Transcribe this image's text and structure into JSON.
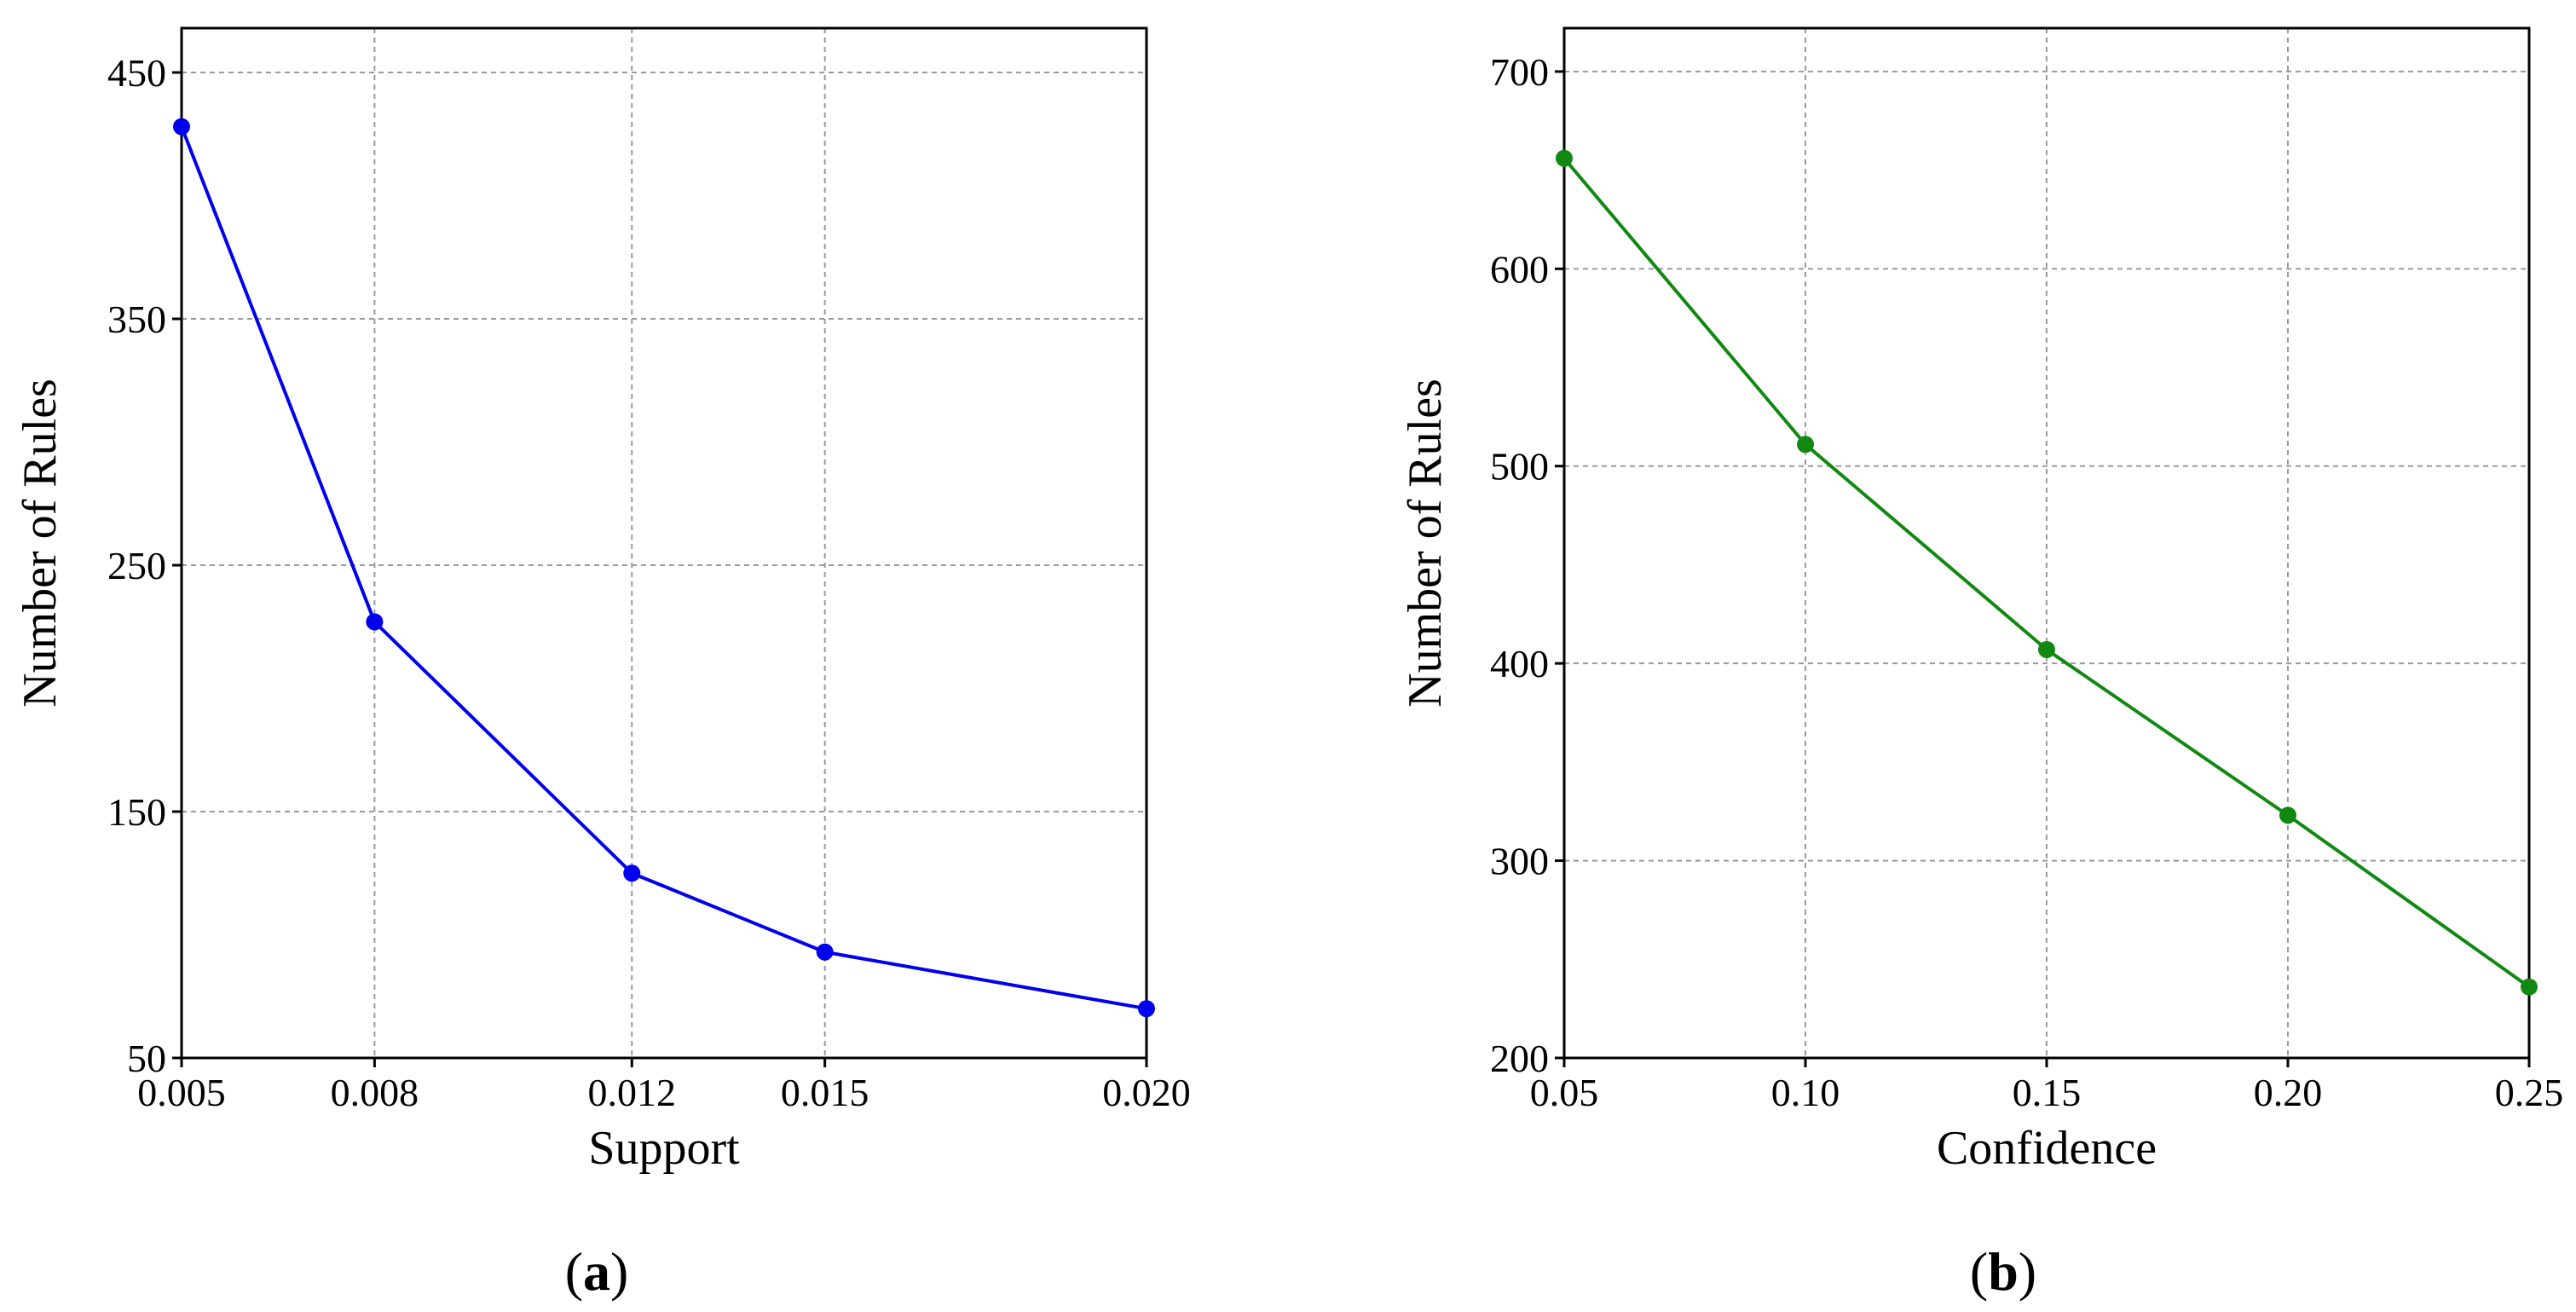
{
  "chart_data": [
    {
      "type": "line",
      "panel": "a",
      "caption_open": "(",
      "caption_letter": "a",
      "caption_close": ")",
      "title": "",
      "xlabel": "Support",
      "ylabel": "Number of Rules",
      "x": [
        0.005,
        0.008,
        0.012,
        0.015,
        0.02
      ],
      "x_tick_labels": [
        "0.005",
        "0.008",
        "0.012",
        "0.015",
        "0.020"
      ],
      "y_ticks": [
        50,
        150,
        250,
        350,
        450
      ],
      "y_tick_labels": [
        "50",
        "150",
        "250",
        "350",
        "450"
      ],
      "xlim": [
        0.005,
        0.02
      ],
      "ylim": [
        50,
        468
      ],
      "grid": true,
      "series": [
        {
          "values": [
            428,
            227,
            125,
            93,
            70
          ],
          "color": "#0000ee"
        }
      ]
    },
    {
      "type": "line",
      "panel": "b",
      "caption_open": "(",
      "caption_letter": "b",
      "caption_close": ")",
      "title": "",
      "xlabel": "Confidence",
      "ylabel": "Number of Rules",
      "x": [
        0.05,
        0.1,
        0.15,
        0.2,
        0.25
      ],
      "x_tick_labels": [
        "0.05",
        "0.10",
        "0.15",
        "0.20",
        "0.25"
      ],
      "y_ticks": [
        200,
        300,
        400,
        500,
        600,
        700
      ],
      "y_tick_labels": [
        "200",
        "300",
        "400",
        "500",
        "600",
        "700"
      ],
      "xlim": [
        0.05,
        0.25
      ],
      "ylim": [
        200,
        722
      ],
      "grid": true,
      "series": [
        {
          "values": [
            656,
            511,
            407,
            323,
            236
          ],
          "color": "#118811"
        }
      ]
    }
  ]
}
